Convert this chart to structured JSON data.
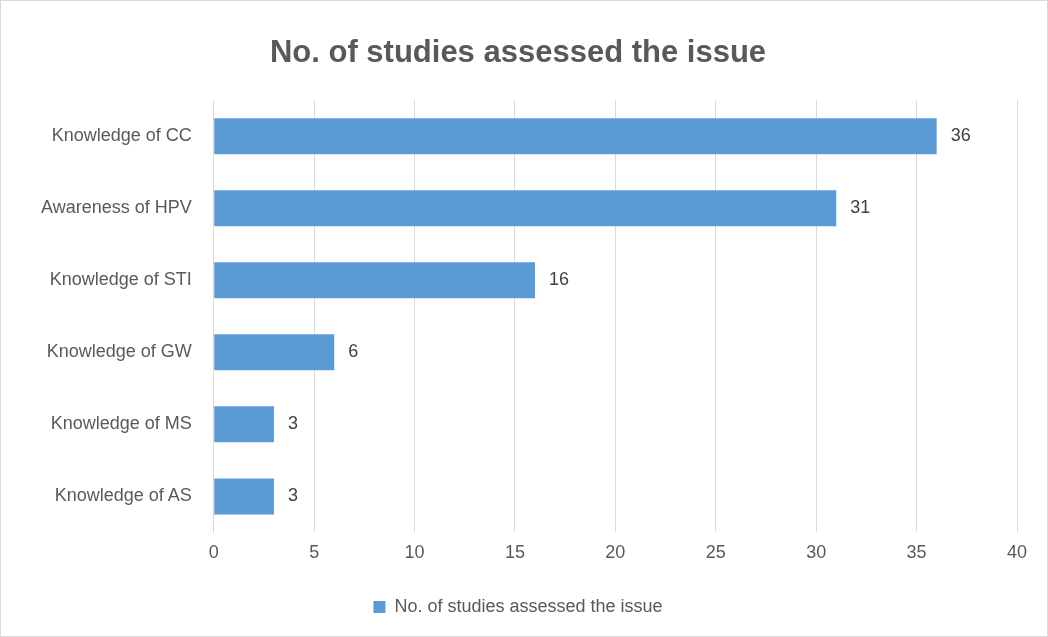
{
  "chart_data": {
    "type": "bar",
    "orientation": "horizontal",
    "title": "No. of studies assessed the issue",
    "categories": [
      "Knowledge of CC",
      "Awareness of HPV",
      "Knowledge of STI",
      "Knowledge of GW",
      "Knowledge of MS",
      "Knowledge of AS"
    ],
    "series": [
      {
        "name": "No. of studies assessed the issue",
        "color": "#5b9bd5",
        "values": [
          36,
          31,
          16,
          6,
          3,
          3
        ]
      }
    ],
    "xlim": [
      0,
      40
    ],
    "xticks": [
      0,
      5,
      10,
      15,
      20,
      25,
      30,
      35,
      40
    ],
    "grid": "x",
    "legend": "bottom",
    "data_labels": true
  }
}
